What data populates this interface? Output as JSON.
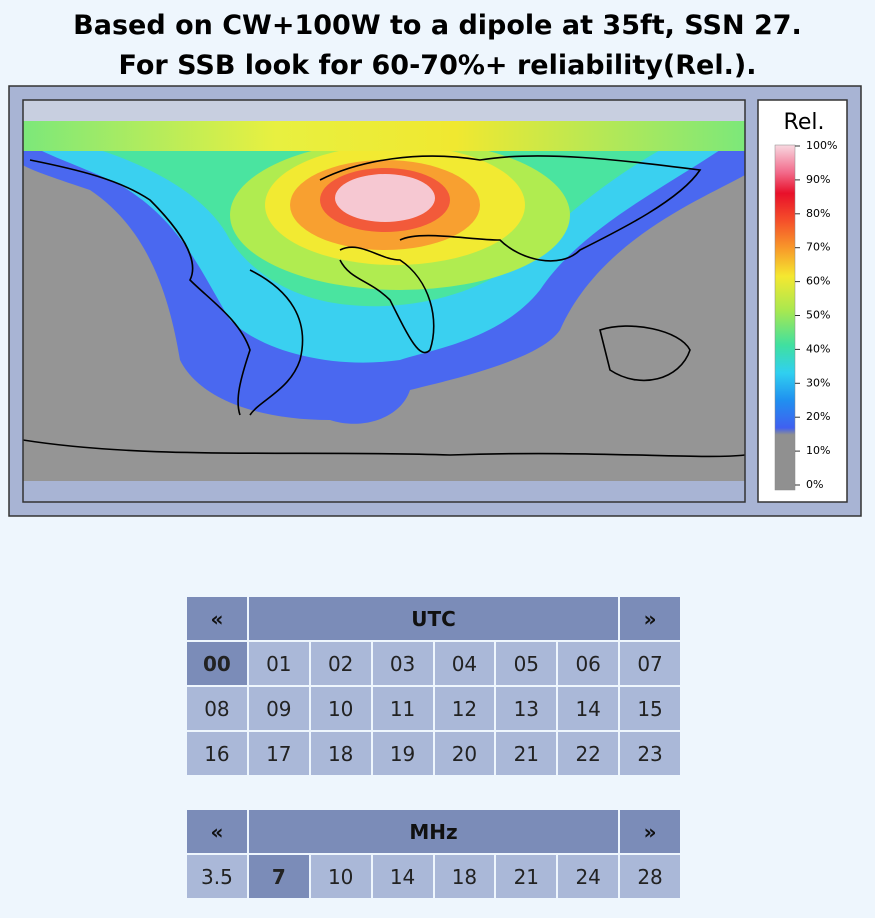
{
  "header": {
    "lines": [
      "Based on CW+100W to a dipole at 35ft, SSN 27.",
      "For SSB look for 60-70%+ reliability(Rel.)."
    ]
  },
  "legend": {
    "title": "Rel.",
    "ticks": [
      "100%",
      "90%",
      "80%",
      "70%",
      "60%",
      "50%",
      "40%",
      "30%",
      "20%",
      "10%",
      "0%"
    ]
  },
  "utc": {
    "prev": "«",
    "title": "UTC",
    "next": "»",
    "selected": 0,
    "cells": [
      "00",
      "01",
      "02",
      "03",
      "04",
      "05",
      "06",
      "07",
      "08",
      "09",
      "10",
      "11",
      "12",
      "13",
      "14",
      "15",
      "16",
      "17",
      "18",
      "19",
      "20",
      "21",
      "22",
      "23"
    ]
  },
  "mhz": {
    "prev": "«",
    "title": "MHz",
    "next": "»",
    "selected": 1,
    "cells": [
      "3.5",
      "7",
      "10",
      "14",
      "18",
      "21",
      "24",
      "28"
    ]
  }
}
